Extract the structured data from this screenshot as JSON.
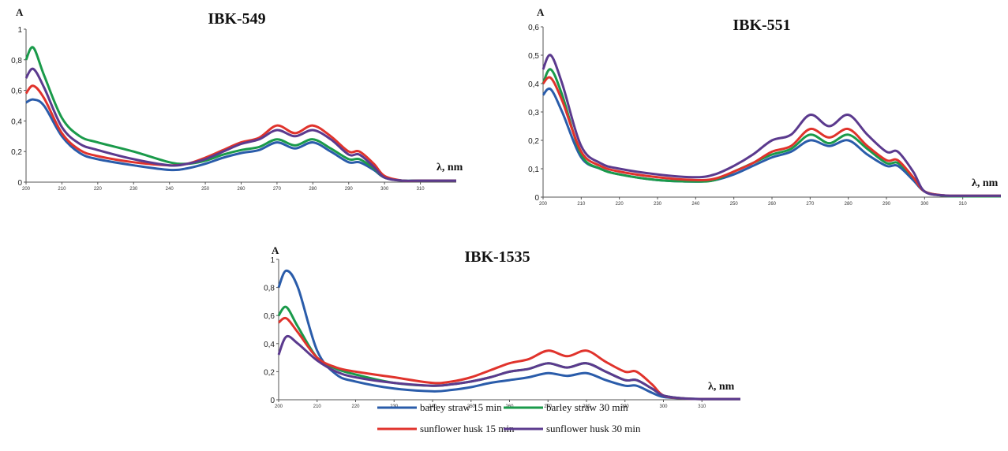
{
  "chart_data": [
    {
      "type": "line",
      "title": "IBK-549",
      "ylabel": "A",
      "xlabel": "λ, nm",
      "xlim": [
        200,
        320
      ],
      "ylim": [
        0,
        1
      ],
      "yticks": [
        "0",
        "0,2",
        "0,4",
        "0,6",
        "0,8",
        "1"
      ],
      "ytick_values": [
        0,
        0.2,
        0.4,
        0.6,
        0.8,
        1.0
      ],
      "xticks": [
        200,
        210,
        220,
        230,
        240,
        250,
        260,
        270,
        280,
        290,
        300,
        310
      ],
      "grid": false,
      "x": [
        200,
        202,
        205,
        210,
        215,
        220,
        230,
        240,
        245,
        250,
        255,
        260,
        265,
        270,
        275,
        280,
        285,
        290,
        293,
        297,
        300,
        305,
        310,
        320
      ],
      "series": [
        {
          "name": "barley straw 15 min",
          "color": "#2a5caa",
          "values": [
            0.52,
            0.54,
            0.5,
            0.3,
            0.19,
            0.15,
            0.11,
            0.08,
            0.09,
            0.12,
            0.16,
            0.19,
            0.21,
            0.26,
            0.22,
            0.26,
            0.2,
            0.13,
            0.13,
            0.08,
            0.03,
            0.01,
            0.01,
            0.01
          ]
        },
        {
          "name": "barley straw 30 min",
          "color": "#1a9a4a",
          "values": [
            0.8,
            0.88,
            0.7,
            0.42,
            0.3,
            0.26,
            0.2,
            0.13,
            0.12,
            0.14,
            0.18,
            0.21,
            0.23,
            0.28,
            0.24,
            0.28,
            0.22,
            0.15,
            0.15,
            0.09,
            0.03,
            0.01,
            0.01,
            0.01
          ]
        },
        {
          "name": "sunflower husk 15 min",
          "color": "#e0332c",
          "values": [
            0.58,
            0.63,
            0.55,
            0.32,
            0.21,
            0.17,
            0.13,
            0.11,
            0.12,
            0.16,
            0.21,
            0.26,
            0.29,
            0.37,
            0.32,
            0.37,
            0.3,
            0.2,
            0.2,
            0.12,
            0.04,
            0.01,
            0.01,
            0.01
          ]
        },
        {
          "name": "sunflower husk 30 min",
          "color": "#5b3a8e",
          "values": [
            0.68,
            0.74,
            0.62,
            0.36,
            0.25,
            0.21,
            0.15,
            0.11,
            0.12,
            0.15,
            0.2,
            0.25,
            0.28,
            0.34,
            0.3,
            0.34,
            0.28,
            0.18,
            0.18,
            0.1,
            0.03,
            0.01,
            0.01,
            0.01
          ]
        }
      ]
    },
    {
      "type": "line",
      "title": "IBK-551",
      "ylabel": "A",
      "xlabel": "λ, nm",
      "xlim": [
        200,
        320
      ],
      "ylim": [
        0,
        0.6
      ],
      "yticks": [
        "0",
        "0,1",
        "0,2",
        "0,3",
        "0,4",
        "0,5",
        "0,6"
      ],
      "ytick_values": [
        0,
        0.1,
        0.2,
        0.3,
        0.4,
        0.5,
        0.6
      ],
      "xticks": [
        200,
        210,
        220,
        230,
        240,
        250,
        260,
        270,
        280,
        290,
        300,
        310
      ],
      "grid": false,
      "x": [
        200,
        202,
        205,
        210,
        215,
        220,
        230,
        240,
        245,
        250,
        255,
        260,
        265,
        270,
        275,
        280,
        285,
        290,
        293,
        297,
        300,
        305,
        310,
        320
      ],
      "series": [
        {
          "name": "barley straw 15 min",
          "color": "#2a5caa",
          "values": [
            0.36,
            0.38,
            0.3,
            0.14,
            0.1,
            0.08,
            0.06,
            0.055,
            0.06,
            0.08,
            0.11,
            0.14,
            0.16,
            0.2,
            0.18,
            0.2,
            0.15,
            0.11,
            0.11,
            0.06,
            0.02,
            0.005,
            0.003,
            0.003
          ]
        },
        {
          "name": "barley straw 30 min",
          "color": "#1a9a4a",
          "values": [
            0.4,
            0.45,
            0.36,
            0.15,
            0.1,
            0.08,
            0.06,
            0.055,
            0.06,
            0.09,
            0.12,
            0.15,
            0.17,
            0.22,
            0.19,
            0.22,
            0.17,
            0.12,
            0.12,
            0.07,
            0.02,
            0.005,
            0.003,
            0.003
          ]
        },
        {
          "name": "sunflower husk 15 min",
          "color": "#e0332c",
          "values": [
            0.4,
            0.42,
            0.34,
            0.16,
            0.11,
            0.09,
            0.07,
            0.06,
            0.065,
            0.09,
            0.12,
            0.16,
            0.18,
            0.24,
            0.21,
            0.24,
            0.18,
            0.13,
            0.13,
            0.07,
            0.02,
            0.006,
            0.005,
            0.005
          ]
        },
        {
          "name": "sunflower husk 30 min",
          "color": "#5b3a8e",
          "values": [
            0.45,
            0.5,
            0.4,
            0.18,
            0.12,
            0.1,
            0.08,
            0.07,
            0.08,
            0.11,
            0.15,
            0.2,
            0.22,
            0.29,
            0.25,
            0.29,
            0.22,
            0.16,
            0.16,
            0.09,
            0.02,
            0.006,
            0.005,
            0.005
          ]
        }
      ]
    },
    {
      "type": "line",
      "title": "IBK-1535",
      "ylabel": "A",
      "xlabel": "λ, nm",
      "xlim": [
        200,
        320
      ],
      "ylim": [
        0,
        1
      ],
      "yticks": [
        "0",
        "0,2",
        "0,4",
        "0,6",
        "0,8",
        "1"
      ],
      "ytick_values": [
        0,
        0.2,
        0.4,
        0.6,
        0.8,
        1.0
      ],
      "xticks": [
        200,
        210,
        220,
        230,
        240,
        250,
        260,
        270,
        280,
        290,
        300,
        310
      ],
      "grid": false,
      "x": [
        200,
        202,
        205,
        210,
        215,
        220,
        230,
        240,
        245,
        250,
        255,
        260,
        265,
        270,
        275,
        280,
        285,
        290,
        293,
        297,
        300,
        305,
        310,
        320
      ],
      "series": [
        {
          "name": "barley straw 15 min",
          "color": "#2a5caa",
          "values": [
            0.8,
            0.92,
            0.8,
            0.35,
            0.18,
            0.13,
            0.08,
            0.06,
            0.07,
            0.09,
            0.12,
            0.14,
            0.16,
            0.19,
            0.17,
            0.19,
            0.14,
            0.1,
            0.1,
            0.05,
            0.02,
            0.01,
            0.005,
            0.005
          ]
        },
        {
          "name": "barley straw 30 min",
          "color": "#1a9a4a",
          "values": [
            0.6,
            0.66,
            0.52,
            0.3,
            0.22,
            0.18,
            0.12,
            0.1,
            0.11,
            0.13,
            0.16,
            0.2,
            0.22,
            0.26,
            0.23,
            0.26,
            0.2,
            0.14,
            0.14,
            0.08,
            0.03,
            0.01,
            0.005,
            0.005
          ]
        },
        {
          "name": "sunflower husk 15 min",
          "color": "#e0332c",
          "values": [
            0.55,
            0.58,
            0.48,
            0.3,
            0.23,
            0.2,
            0.16,
            0.12,
            0.13,
            0.16,
            0.21,
            0.26,
            0.29,
            0.35,
            0.31,
            0.35,
            0.27,
            0.2,
            0.2,
            0.11,
            0.03,
            0.01,
            0.005,
            0.005
          ]
        },
        {
          "name": "sunflower husk 30 min",
          "color": "#5b3a8e",
          "values": [
            0.32,
            0.45,
            0.4,
            0.28,
            0.2,
            0.16,
            0.12,
            0.1,
            0.11,
            0.13,
            0.16,
            0.2,
            0.22,
            0.26,
            0.23,
            0.26,
            0.2,
            0.14,
            0.14,
            0.08,
            0.03,
            0.01,
            0.005,
            0.005
          ]
        }
      ]
    }
  ],
  "legend": [
    {
      "label": "barley straw 15 min",
      "color": "#2a5caa"
    },
    {
      "label": "barley straw 30 min",
      "color": "#1a9a4a"
    },
    {
      "label": "sunflower husk 15 min",
      "color": "#e0332c"
    },
    {
      "label": "sunflower husk 30 min",
      "color": "#5b3a8e"
    }
  ]
}
